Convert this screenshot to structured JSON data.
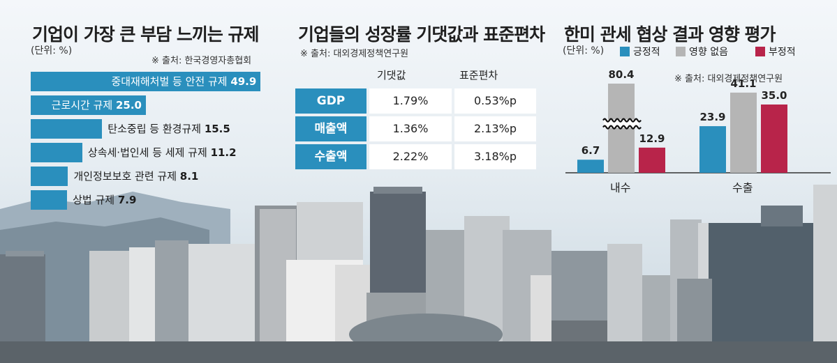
{
  "colors": {
    "accent_blue": "#2a8fbd",
    "neutral_gray": "#b5b5b5",
    "negative_red": "#b8244a"
  },
  "chart_data": [
    {
      "type": "bar",
      "orientation": "horizontal",
      "title": "기업이 가장 큰 부담 느끼는 규제",
      "unit": "(단위: %)",
      "source": "※ 출처: 한국경영자총협회",
      "categories": [
        "중대재해처벌 등 안전 규제",
        "근로시간 규제",
        "탄소중립 등 환경규제",
        "상속세·법인세 등 세제 규제",
        "개인정보보호 관련 규제",
        "상법 규제"
      ],
      "values": [
        49.9,
        25.0,
        15.5,
        11.2,
        8.1,
        7.9
      ],
      "value_labels": [
        "49.9",
        "25.0",
        "15.5",
        "11.2",
        "8.1",
        "7.9"
      ],
      "xlim": [
        0,
        50
      ]
    },
    {
      "type": "table",
      "title": "기업들의 성장률 기댓값과 표준편차",
      "source": "※ 출처: 대외경제정책연구원",
      "columns": [
        "기댓값",
        "표준편차"
      ],
      "rows": [
        {
          "label": "GDP",
          "values": [
            "1.79%",
            "0.53%p"
          ]
        },
        {
          "label": "매출액",
          "values": [
            "1.36%",
            "2.13%p"
          ]
        },
        {
          "label": "수출액",
          "values": [
            "2.22%",
            "3.18%p"
          ]
        }
      ]
    },
    {
      "type": "bar",
      "title": "한미 관세 협상 결과 영향 평가",
      "unit": "(단위: %)",
      "source": "※ 출처: 대외경제정책연구원",
      "categories": [
        "내수",
        "수출"
      ],
      "series": [
        {
          "name": "긍정적",
          "color": "#2a8fbd",
          "values": [
            6.7,
            23.9
          ]
        },
        {
          "name": "영향 없음",
          "color": "#b5b5b5",
          "values": [
            80.4,
            41.1
          ]
        },
        {
          "name": "부정적",
          "color": "#b8244a",
          "values": [
            12.9,
            35.0
          ]
        }
      ],
      "value_labels": [
        [
          "6.7",
          "23.9"
        ],
        [
          "80.4",
          "41.1"
        ],
        [
          "12.9",
          "35.0"
        ]
      ],
      "ylim": [
        0,
        50
      ],
      "axis_break": true
    }
  ]
}
